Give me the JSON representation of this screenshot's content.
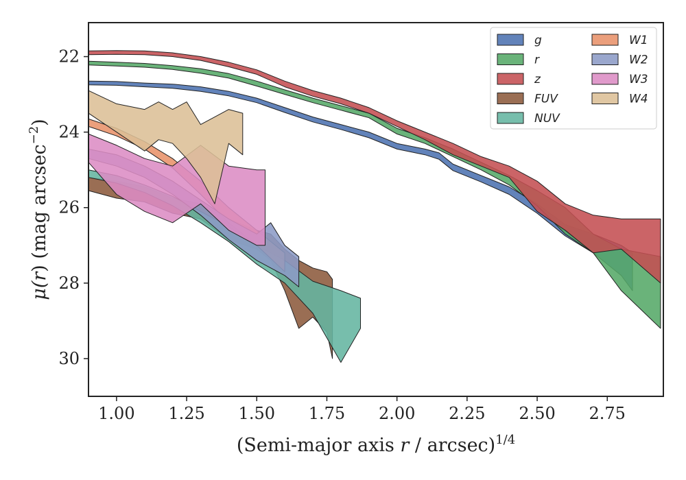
{
  "chart_data": {
    "type": "area",
    "title": "",
    "xlabel": {
      "text": "(Semi-major axis ",
      "var": "r",
      "rest": " / arcsec)",
      "sup": "1/4"
    },
    "ylabel": {
      "pre": "μ(",
      "var": "r",
      "post": ") (mag arcsec",
      "sup": "−2",
      "close": ")"
    },
    "xlim": [
      0.9,
      2.95
    ],
    "ylim": [
      31.0,
      21.1
    ],
    "y_inverted": true,
    "xticks": [
      1.0,
      1.25,
      1.5,
      1.75,
      2.0,
      2.25,
      2.5,
      2.75
    ],
    "xtick_labels": [
      "1.00",
      "1.25",
      "1.50",
      "1.75",
      "2.00",
      "2.25",
      "2.50",
      "2.75"
    ],
    "yticks": [
      22,
      24,
      26,
      28,
      30
    ],
    "ytick_labels": [
      "22",
      "24",
      "26",
      "28",
      "30"
    ],
    "grid": false,
    "legend": {
      "placement": "upper-right",
      "columns": 2
    },
    "series": [
      {
        "name": "g",
        "color": "#4c72b0",
        "x": [
          0.9,
          1.0,
          1.1,
          1.2,
          1.3,
          1.4,
          1.5,
          1.6,
          1.7,
          1.8,
          1.9,
          2.0,
          2.1,
          2.15,
          2.2,
          2.3,
          2.4,
          2.5,
          2.6,
          2.7,
          2.8,
          2.84
        ],
        "lo": [
          22.65,
          22.66,
          22.7,
          22.73,
          22.8,
          22.92,
          23.1,
          23.35,
          23.6,
          23.8,
          24.0,
          24.3,
          24.45,
          24.55,
          24.85,
          25.15,
          25.45,
          25.9,
          26.45,
          26.7,
          27.0,
          27.2
        ],
        "hi": [
          22.75,
          22.76,
          22.8,
          22.84,
          22.92,
          23.04,
          23.22,
          23.48,
          23.73,
          23.93,
          24.15,
          24.45,
          24.6,
          24.72,
          25.02,
          25.32,
          25.65,
          26.15,
          26.75,
          27.2,
          27.8,
          28.2
        ]
      },
      {
        "name": "r",
        "color": "#55a868",
        "x": [
          0.9,
          1.0,
          1.1,
          1.2,
          1.3,
          1.4,
          1.5,
          1.6,
          1.7,
          1.8,
          1.9,
          2.0,
          2.1,
          2.2,
          2.3,
          2.4,
          2.5,
          2.6,
          2.7,
          2.8,
          2.94
        ],
        "lo": [
          22.12,
          22.15,
          22.18,
          22.24,
          22.32,
          22.45,
          22.65,
          22.88,
          23.1,
          23.3,
          23.5,
          23.9,
          24.15,
          24.45,
          24.8,
          25.15,
          25.55,
          26.0,
          26.7,
          27.1,
          27.3
        ],
        "hi": [
          22.22,
          22.25,
          22.28,
          22.34,
          22.44,
          22.57,
          22.78,
          23.0,
          23.22,
          23.42,
          23.62,
          24.05,
          24.3,
          24.65,
          25.0,
          25.4,
          25.95,
          26.7,
          27.2,
          28.2,
          29.2
        ]
      },
      {
        "name": "z",
        "color": "#c44e52",
        "x": [
          0.9,
          1.0,
          1.1,
          1.2,
          1.3,
          1.4,
          1.5,
          1.6,
          1.7,
          1.8,
          1.9,
          2.0,
          2.1,
          2.2,
          2.3,
          2.4,
          2.5,
          2.6,
          2.7,
          2.8,
          2.94
        ],
        "lo": [
          21.85,
          21.84,
          21.85,
          21.9,
          22.0,
          22.15,
          22.35,
          22.65,
          22.9,
          23.1,
          23.35,
          23.7,
          24.0,
          24.3,
          24.65,
          24.9,
          25.3,
          25.9,
          26.2,
          26.3,
          26.3
        ],
        "hi": [
          21.95,
          21.94,
          21.95,
          22.0,
          22.1,
          22.27,
          22.47,
          22.8,
          23.05,
          23.25,
          23.5,
          23.85,
          24.2,
          24.6,
          24.9,
          25.2,
          26.1,
          26.6,
          27.2,
          27.1,
          28.0
        ]
      },
      {
        "name": "FUV",
        "color": "#8c5a3c",
        "x": [
          0.9,
          1.0,
          1.1,
          1.2,
          1.3,
          1.4,
          1.5,
          1.55,
          1.6,
          1.65,
          1.7,
          1.75,
          1.77
        ],
        "lo": [
          25.2,
          25.3,
          25.45,
          25.75,
          25.9,
          26.3,
          26.6,
          26.7,
          27.1,
          27.4,
          27.6,
          27.7,
          27.9
        ],
        "hi": [
          25.55,
          25.75,
          25.85,
          26.15,
          26.3,
          26.85,
          27.1,
          27.4,
          28.2,
          29.2,
          28.9,
          29.3,
          30.0
        ]
      },
      {
        "name": "NUV",
        "color": "#64b5a0",
        "x": [
          0.9,
          1.0,
          1.1,
          1.2,
          1.3,
          1.4,
          1.5,
          1.6,
          1.7,
          1.8,
          1.87
        ],
        "lo": [
          25.0,
          25.15,
          25.4,
          25.7,
          26.1,
          26.5,
          27.0,
          27.4,
          27.95,
          28.2,
          28.4
        ],
        "hi": [
          25.2,
          25.35,
          25.6,
          25.95,
          26.4,
          26.9,
          27.5,
          28.0,
          28.8,
          30.1,
          29.2
        ]
      },
      {
        "name": "W1",
        "color": "#e8926a",
        "x": [
          0.9,
          1.0,
          1.1,
          1.2,
          1.3,
          1.4,
          1.5,
          1.6
        ],
        "lo": [
          23.65,
          23.9,
          24.25,
          24.7,
          25.3,
          26.0,
          26.6,
          27.2
        ],
        "hi": [
          23.85,
          24.1,
          24.45,
          24.95,
          25.65,
          26.4,
          27.0,
          27.7
        ]
      },
      {
        "name": "W2",
        "color": "#8c9bc6",
        "x": [
          0.9,
          1.0,
          1.1,
          1.2,
          1.3,
          1.4,
          1.5,
          1.55,
          1.6,
          1.65
        ],
        "lo": [
          24.45,
          24.6,
          24.9,
          25.3,
          25.8,
          26.3,
          26.7,
          26.4,
          27.0,
          27.3
        ],
        "hi": [
          24.7,
          24.9,
          25.2,
          25.65,
          26.2,
          26.85,
          27.4,
          27.6,
          27.8,
          28.1
        ]
      },
      {
        "name": "W3",
        "color": "#dc8cc4",
        "x": [
          0.9,
          1.0,
          1.1,
          1.2,
          1.3,
          1.4,
          1.5,
          1.53
        ],
        "lo": [
          24.05,
          24.35,
          24.7,
          24.9,
          24.35,
          24.9,
          25.0,
          25.0
        ],
        "hi": [
          24.8,
          25.65,
          26.1,
          26.4,
          25.9,
          26.6,
          27.0,
          27.0
        ]
      },
      {
        "name": "W4",
        "color": "#dcbf96",
        "x": [
          0.9,
          1.0,
          1.1,
          1.15,
          1.2,
          1.25,
          1.3,
          1.35,
          1.4,
          1.45
        ],
        "lo": [
          22.9,
          23.25,
          23.4,
          23.2,
          23.4,
          23.2,
          23.8,
          23.6,
          23.4,
          23.5
        ],
        "hi": [
          23.5,
          24.0,
          24.5,
          24.2,
          24.3,
          24.7,
          25.2,
          25.9,
          24.3,
          24.6
        ]
      }
    ]
  }
}
